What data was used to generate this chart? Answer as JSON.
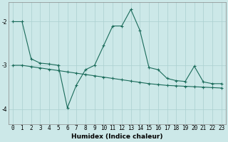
{
  "xlabel": "Humidex (Indice chaleur)",
  "background_color": "#cce8e8",
  "grid_color": "#aacfcf",
  "line_color": "#1a6b5a",
  "x_values": [
    0,
    1,
    2,
    3,
    4,
    5,
    6,
    7,
    8,
    9,
    10,
    11,
    12,
    13,
    14,
    15,
    16,
    17,
    18,
    19,
    20,
    21,
    22,
    23
  ],
  "line1_y": [
    -2.0,
    -2.0,
    -2.85,
    -2.95,
    -2.97,
    -3.0,
    -3.97,
    -3.45,
    -3.1,
    -3.0,
    -2.55,
    -2.1,
    -2.1,
    -1.72,
    -2.2,
    -3.05,
    -3.1,
    -3.3,
    -3.35,
    -3.37,
    -3.02,
    -3.38,
    -3.42,
    -3.42
  ],
  "line2_y": [
    -3.0,
    -3.0,
    -3.03,
    -3.06,
    -3.09,
    -3.12,
    -3.15,
    -3.18,
    -3.21,
    -3.24,
    -3.27,
    -3.3,
    -3.33,
    -3.36,
    -3.39,
    -3.42,
    -3.44,
    -3.46,
    -3.47,
    -3.48,
    -3.49,
    -3.5,
    -3.51,
    -3.52
  ],
  "ylim": [
    -4.35,
    -1.55
  ],
  "yticks": [
    -4,
    -3,
    -2
  ],
  "xlim": [
    -0.5,
    23.5
  ],
  "xlabel_fontsize": 6.5,
  "tick_fontsize": 5.5
}
